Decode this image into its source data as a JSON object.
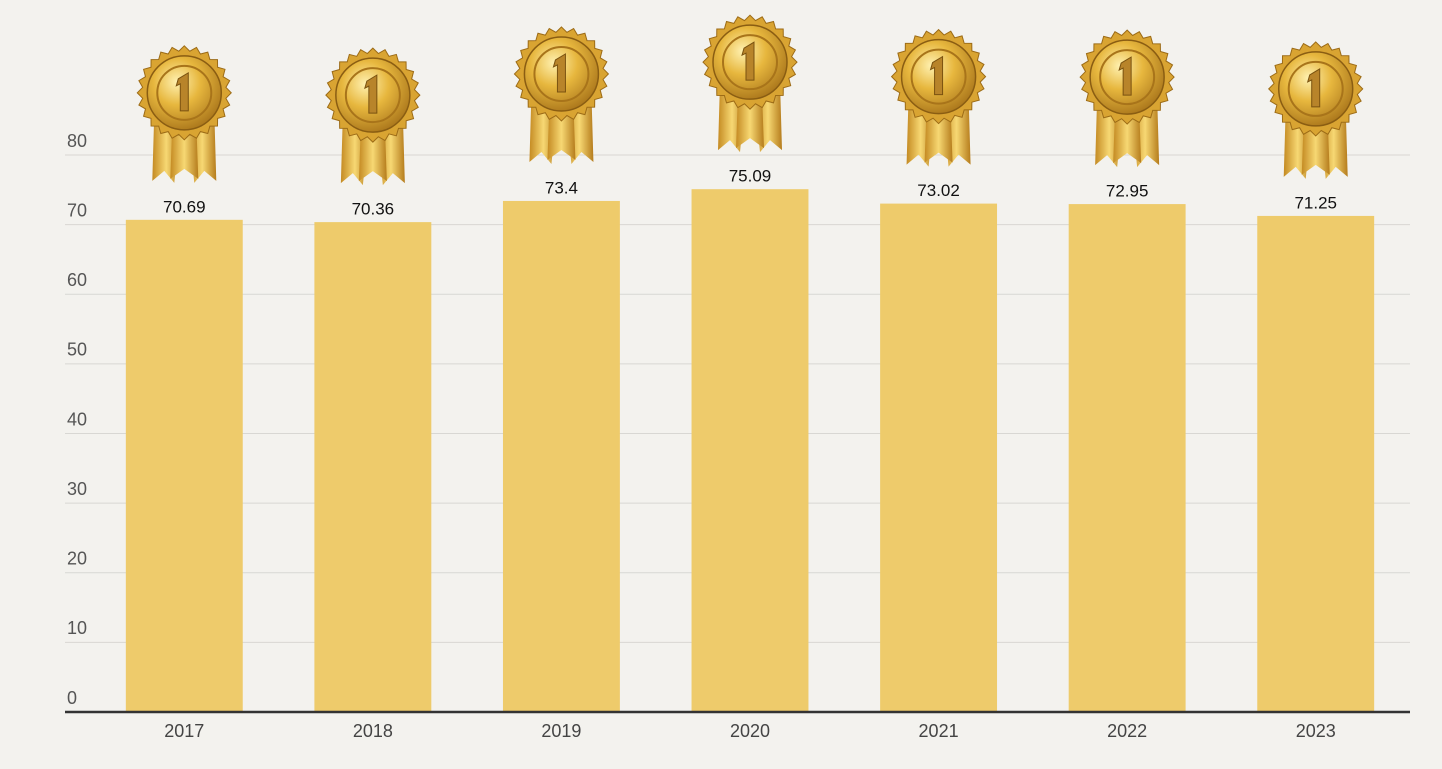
{
  "chart_data": {
    "type": "bar",
    "categories": [
      "2017",
      "2018",
      "2019",
      "2020",
      "2021",
      "2022",
      "2023"
    ],
    "values": [
      70.69,
      70.36,
      73.4,
      75.09,
      73.02,
      72.95,
      71.25
    ],
    "color": "#eecb6b",
    "ylim": [
      0,
      80
    ],
    "yticks": [
      0,
      10,
      20,
      30,
      40,
      50,
      60,
      70,
      80
    ],
    "grid": true
  }
}
